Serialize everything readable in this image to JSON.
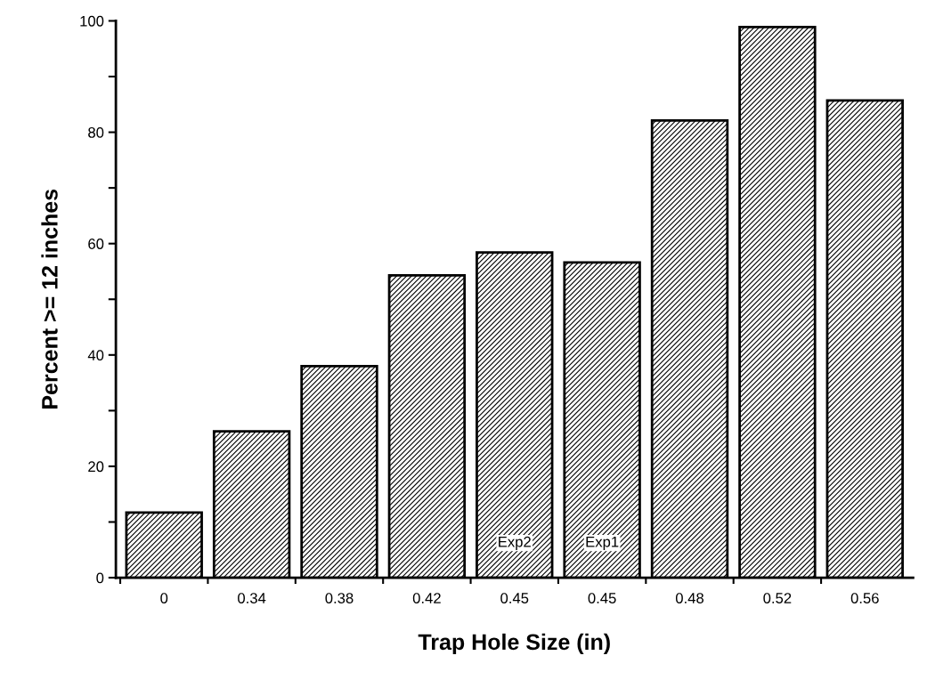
{
  "chart_data": {
    "type": "bar",
    "xlabel": "Trap Hole Size (in)",
    "ylabel": "Percent >= 12 inches",
    "categories": [
      "0",
      "0.34",
      "0.38",
      "0.42",
      "0.45",
      "0.45",
      "0.48",
      "0.52",
      "0.56"
    ],
    "values": [
      11.7,
      26.3,
      38.0,
      54.3,
      58.4,
      56.6,
      82.1,
      98.9,
      85.7
    ],
    "color": "#000000",
    "ylim": [
      0,
      100
    ],
    "yticks": [
      0,
      {
        "value": 10,
        "label": null
      },
      20,
      {
        "value": 30,
        "label": null
      },
      40,
      {
        "value": 50,
        "label": null
      },
      60,
      {
        "value": 70,
        "label": null
      },
      80,
      {
        "value": 90,
        "label": null
      },
      100
    ],
    "annotations": [
      "Exp2",
      "Exp1"
    ],
    "grid": false
  }
}
